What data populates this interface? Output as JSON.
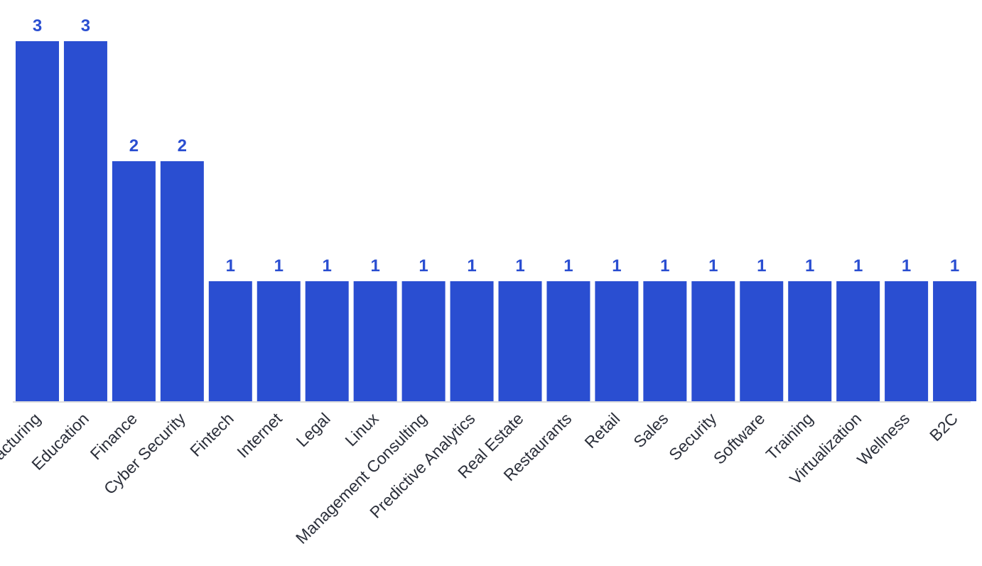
{
  "chart_data": {
    "type": "bar",
    "categories": [
      "Manufacturing",
      "Education",
      "Finance",
      "Cyber Security",
      "Fintech",
      "Internet",
      "Legal",
      "Linux",
      "Management Consulting",
      "Predictive Analytics",
      "Real Estate",
      "Restaurants",
      "Retail",
      "Sales",
      "Security",
      "Software",
      "Training",
      "Virtualization",
      "Wellness",
      "B2C"
    ],
    "values": [
      3,
      3,
      2,
      2,
      1,
      1,
      1,
      1,
      1,
      1,
      1,
      1,
      1,
      1,
      1,
      1,
      1,
      1,
      1,
      1
    ],
    "ylim": [
      0,
      3
    ],
    "data_labels": "on",
    "grid": false,
    "legend": "none",
    "colors": {
      "bar": "#2a4ed1",
      "data_label": "#2a4ed1",
      "axis": "#dddddd",
      "tick_label": "#2b2f3a"
    }
  }
}
